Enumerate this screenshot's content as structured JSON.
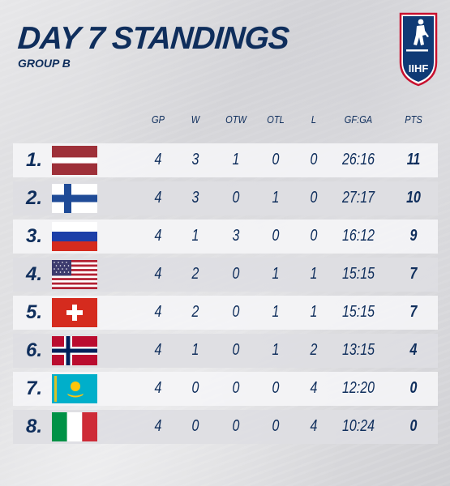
{
  "header": {
    "title": "DAY 7 STANDINGS",
    "subtitle": "GROUP B",
    "logo_text": "IIHF"
  },
  "columns": [
    "GP",
    "W",
    "OTW",
    "OTL",
    "L",
    "GF:GA",
    "PTS"
  ],
  "rows": [
    {
      "rank": "1.",
      "flag": "latvia-flag-icon",
      "gp": "4",
      "w": "3",
      "otw": "1",
      "otl": "0",
      "l": "0",
      "gfga": "26:16",
      "pts": "11"
    },
    {
      "rank": "2.",
      "flag": "finland-flag-icon",
      "gp": "4",
      "w": "3",
      "otw": "0",
      "otl": "1",
      "l": "0",
      "gfga": "27:17",
      "pts": "10"
    },
    {
      "rank": "3.",
      "flag": "russia-flag-icon",
      "gp": "4",
      "w": "1",
      "otw": "3",
      "otl": "0",
      "l": "0",
      "gfga": "16:12",
      "pts": "9"
    },
    {
      "rank": "4.",
      "flag": "usa-flag-icon",
      "gp": "4",
      "w": "2",
      "otw": "0",
      "otl": "1",
      "l": "1",
      "gfga": "15:15",
      "pts": "7"
    },
    {
      "rank": "5.",
      "flag": "switzerland-flag-icon",
      "gp": "4",
      "w": "2",
      "otw": "0",
      "otl": "1",
      "l": "1",
      "gfga": "15:15",
      "pts": "7"
    },
    {
      "rank": "6.",
      "flag": "norway-flag-icon",
      "gp": "4",
      "w": "1",
      "otw": "0",
      "otl": "1",
      "l": "2",
      "gfga": "13:15",
      "pts": "4"
    },
    {
      "rank": "7.",
      "flag": "kazakhstan-flag-icon",
      "gp": "4",
      "w": "0",
      "otw": "0",
      "otl": "0",
      "l": "4",
      "gfga": "12:20",
      "pts": "0"
    },
    {
      "rank": "8.",
      "flag": "italy-flag-icon",
      "gp": "4",
      "w": "0",
      "otw": "0",
      "otl": "0",
      "l": "4",
      "gfga": "10:24",
      "pts": "0"
    }
  ],
  "colors": {
    "navy": "#0f2e5c",
    "logo_red": "#c8102e"
  }
}
